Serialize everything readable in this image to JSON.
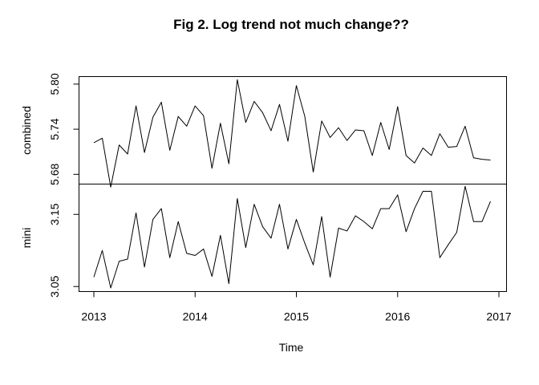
{
  "chart_data": {
    "type": "line",
    "title": "Fig 2. Log trend not much change??",
    "xlabel": "Time",
    "x_ticks": [
      "2013",
      "2014",
      "2015",
      "2016",
      "2017"
    ],
    "xlim": [
      2013,
      2017
    ],
    "panels": [
      {
        "name": "combined",
        "ylim": [
          5.667,
          5.81
        ],
        "y_ticks": [
          "5.68",
          "5.74",
          "5.80"
        ],
        "start": 2013.0,
        "frequency": 12,
        "values": [
          5.722,
          5.728,
          5.663,
          5.719,
          5.707,
          5.771,
          5.709,
          5.756,
          5.776,
          5.712,
          5.757,
          5.744,
          5.771,
          5.758,
          5.688,
          5.748,
          5.694,
          5.806,
          5.749,
          5.777,
          5.762,
          5.738,
          5.773,
          5.724,
          5.798,
          5.757,
          5.683,
          5.751,
          5.729,
          5.742,
          5.725,
          5.739,
          5.738,
          5.705,
          5.749,
          5.713,
          5.77,
          5.705,
          5.695,
          5.715,
          5.705,
          5.734,
          5.716,
          5.717,
          5.744,
          5.702,
          5.7,
          5.699
        ]
      },
      {
        "name": "mini",
        "ylim": [
          3.043,
          3.192
        ],
        "y_ticks": [
          "3.05",
          "3.15"
        ],
        "start": 2013.0,
        "frequency": 12,
        "values": [
          3.063,
          3.1,
          3.048,
          3.085,
          3.088,
          3.152,
          3.077,
          3.143,
          3.158,
          3.09,
          3.14,
          3.096,
          3.093,
          3.102,
          3.064,
          3.121,
          3.054,
          3.172,
          3.104,
          3.164,
          3.133,
          3.117,
          3.164,
          3.102,
          3.143,
          3.11,
          3.08,
          3.147,
          3.063,
          3.131,
          3.127,
          3.148,
          3.14,
          3.13,
          3.158,
          3.158,
          3.177,
          3.126,
          3.158,
          3.182,
          3.182,
          3.09,
          3.108,
          3.125,
          3.189,
          3.14,
          3.14,
          3.168
        ]
      }
    ]
  }
}
